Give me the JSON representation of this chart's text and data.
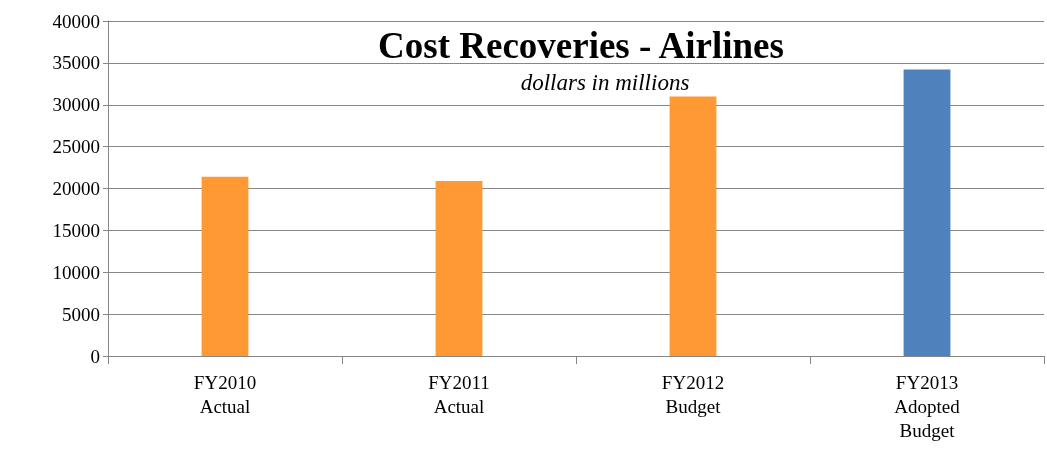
{
  "chart_data": {
    "type": "bar",
    "title": "Cost Recoveries - Airlines",
    "subtitle": "dollars in millions",
    "categories": [
      "FY2010\nActual",
      "FY2011\nActual",
      "FY2012\nBudget",
      "FY2013\nAdopted\nBudget"
    ],
    "values": [
      21400,
      20900,
      31000,
      34200
    ],
    "colors": [
      "#ff9933",
      "#ff9933",
      "#ff9933",
      "#4f81bd"
    ],
    "ylim": [
      0,
      40000
    ],
    "yticks": [
      0,
      5000,
      10000,
      15000,
      20000,
      25000,
      30000,
      35000,
      40000
    ],
    "grid": "y"
  }
}
